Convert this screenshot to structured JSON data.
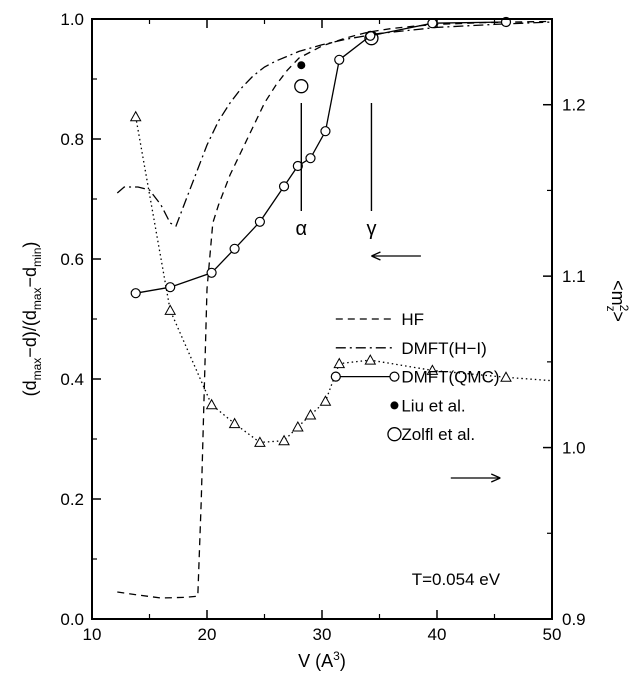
{
  "chart_data": {
    "type": "line",
    "title": "",
    "xlabel": "V (A³)",
    "xlabel_main": "V (A",
    "xlabel_sup": "3",
    "xlabel_close": ")",
    "ylabel": "(dmax−d)/(dmax−dmin)",
    "y2label": "<mz²>",
    "xlim": [
      10,
      50
    ],
    "ylim": [
      0.0,
      1.0
    ],
    "y2lim": [
      0.9,
      1.25
    ],
    "xticks": [
      10,
      20,
      30,
      40,
      50
    ],
    "xtick_labels": [
      "10",
      "20",
      "30",
      "40",
      "50"
    ],
    "yticks": [
      0.0,
      0.2,
      0.4,
      0.6,
      0.8,
      1.0
    ],
    "ytick_labels": [
      "0.0",
      "0.2",
      "0.4",
      "0.6",
      "0.8",
      "1.0"
    ],
    "y2ticks": [
      0.9,
      1.0,
      1.1,
      1.2
    ],
    "y2tick_labels": [
      "0.9",
      "1.0",
      "1.1",
      "1.2"
    ],
    "grid": false,
    "legend_position": "center-right",
    "series": [
      {
        "name": "HF",
        "style": "dashed",
        "axis": "left",
        "x": [
          12.2,
          14,
          16,
          18,
          19.2,
          19.5,
          20.0,
          20.5,
          21,
          22,
          23,
          24,
          25,
          26,
          27,
          28,
          30,
          32,
          34,
          36,
          38,
          40,
          44,
          50
        ],
        "y": [
          0.045,
          0.04,
          0.035,
          0.036,
          0.038,
          0.2,
          0.55,
          0.66,
          0.69,
          0.74,
          0.78,
          0.82,
          0.86,
          0.89,
          0.915,
          0.935,
          0.955,
          0.968,
          0.978,
          0.984,
          0.988,
          0.991,
          0.994,
          0.996
        ]
      },
      {
        "name": "DMFT(H−I)",
        "style": "dashdot",
        "axis": "left",
        "x": [
          12.2,
          12.8,
          14,
          15,
          16,
          16.8,
          17.3,
          18,
          19,
          20,
          21,
          22,
          23,
          24,
          25,
          26,
          28,
          30,
          32,
          35,
          40,
          45,
          50
        ],
        "y": [
          0.71,
          0.72,
          0.72,
          0.715,
          0.69,
          0.66,
          0.655,
          0.69,
          0.74,
          0.79,
          0.83,
          0.86,
          0.885,
          0.905,
          0.92,
          0.93,
          0.946,
          0.957,
          0.966,
          0.976,
          0.986,
          0.991,
          0.995
        ]
      },
      {
        "name": "DMFT(QMC)",
        "style": "solid-open-circles",
        "axis": "left",
        "x": [
          13.8,
          16.8,
          20.4,
          22.4,
          24.6,
          26.7,
          27.9,
          29.0,
          30.3,
          31.5,
          34.2,
          39.6,
          46.0
        ],
        "y": [
          0.543,
          0.553,
          0.577,
          0.617,
          0.662,
          0.721,
          0.755,
          0.768,
          0.813,
          0.932,
          0.972,
          0.993,
          0.995
        ]
      },
      {
        "name": "Liu et al.",
        "style": "filled-circle",
        "axis": "left",
        "x": [
          28.2
        ],
        "y": [
          0.923
        ]
      },
      {
        "name": "Zolfl et al.",
        "style": "open-circle-large",
        "axis": "left",
        "x": [
          28.2,
          34.3
        ],
        "y": [
          0.888,
          0.968
        ]
      },
      {
        "name": "",
        "style": "dotted-triangles",
        "axis": "right",
        "x": [
          13.8,
          16.8,
          20.4,
          22.4,
          24.6,
          26.7,
          27.9,
          29.0,
          30.3,
          31.5,
          34.2,
          39.6,
          46.0,
          50.0
        ],
        "y": [
          1.193,
          1.08,
          1.025,
          1.014,
          1.003,
          1.004,
          1.012,
          1.019,
          1.027,
          1.049,
          1.051,
          1.045,
          1.041,
          1.039
        ]
      }
    ],
    "annotations": {
      "alpha": "α",
      "gamma": "γ",
      "temperature": "T=0.054 eV"
    },
    "colors": {
      "ink": "#000000",
      "background": "#ffffff"
    }
  }
}
